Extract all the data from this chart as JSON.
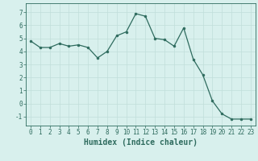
{
  "x": [
    0,
    1,
    2,
    3,
    4,
    5,
    6,
    7,
    8,
    9,
    10,
    11,
    12,
    13,
    14,
    15,
    16,
    17,
    18,
    19,
    20,
    21,
    22,
    23
  ],
  "y": [
    4.8,
    4.3,
    4.3,
    4.6,
    4.4,
    4.5,
    4.3,
    3.5,
    4.0,
    5.2,
    5.5,
    6.9,
    6.7,
    5.0,
    4.9,
    4.4,
    5.8,
    3.4,
    2.2,
    0.2,
    -0.8,
    -1.2,
    -1.2,
    -1.2
  ],
  "line_color": "#2e6b5e",
  "marker": "o",
  "markersize": 2.0,
  "linewidth": 0.9,
  "xlabel": "Humidex (Indice chaleur)",
  "xlim": [
    -0.5,
    23.5
  ],
  "ylim": [
    -1.7,
    7.7
  ],
  "yticks": [
    -1,
    0,
    1,
    2,
    3,
    4,
    5,
    6,
    7
  ],
  "xticks": [
    0,
    1,
    2,
    3,
    4,
    5,
    6,
    7,
    8,
    9,
    10,
    11,
    12,
    13,
    14,
    15,
    16,
    17,
    18,
    19,
    20,
    21,
    22,
    23
  ],
  "background_color": "#d8f0ed",
  "grid_color": "#c0deda",
  "tick_label_fontsize": 5.5,
  "xlabel_fontsize": 7.0
}
